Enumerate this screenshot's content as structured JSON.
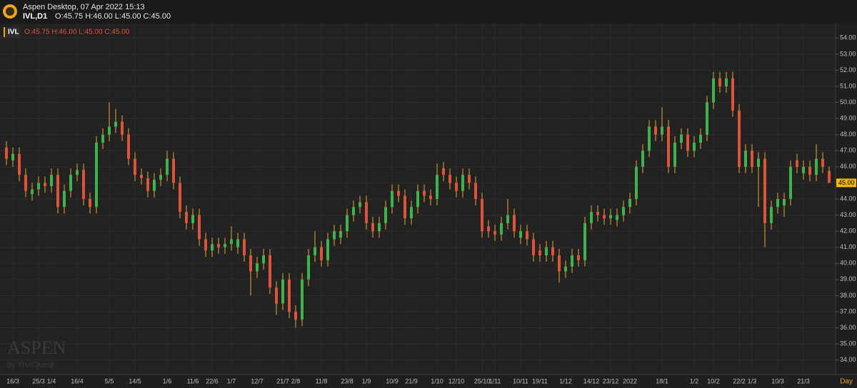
{
  "header": {
    "app": "Aspen Desktop, 07 Apr 2022 15:13",
    "symbol": "IVL,D1",
    "ohlc": "O:45.75 H:46.00 L:45.00 C:45.00"
  },
  "watermark": {
    "brand": "ASPEN",
    "by": "by ThaiQuest"
  },
  "chart_data": {
    "type": "candlestick",
    "categories": [
      null,
      "16/3",
      null,
      null,
      null,
      "25/3",
      null,
      "1/4",
      null,
      null,
      null,
      "16/4",
      null,
      null,
      null,
      null,
      "5/5",
      null,
      null,
      null,
      "14/5",
      null,
      null,
      null,
      null,
      "1/6",
      null,
      null,
      null,
      "11/6",
      null,
      null,
      "22/6",
      null,
      null,
      "1/7",
      null,
      null,
      null,
      "12/7",
      null,
      null,
      null,
      "21/7",
      null,
      "2/8",
      null,
      null,
      null,
      "11/8",
      null,
      null,
      null,
      "23/8",
      null,
      null,
      "1/9",
      null,
      null,
      null,
      "10/9",
      null,
      null,
      "21/9",
      null,
      null,
      null,
      "1/10",
      null,
      null,
      "12/10",
      null,
      null,
      null,
      "25/10",
      null,
      "1/11",
      null,
      null,
      null,
      "10/11",
      null,
      null,
      "19/11",
      null,
      null,
      null,
      "1/12",
      null,
      null,
      null,
      "14/12",
      null,
      null,
      "23/12",
      null,
      null,
      "2022",
      null,
      null,
      null,
      null,
      "18/1",
      null,
      null,
      null,
      null,
      "1/2",
      null,
      null,
      "10/2",
      null,
      null,
      null,
      "22/2",
      null,
      "1/3",
      null,
      null,
      null,
      "10/3",
      null,
      null,
      null,
      "21/3",
      null,
      null,
      null,
      null
    ],
    "x_axis_unit": "Day",
    "series": [
      {
        "name": "IVL",
        "legend_text": "O:45.75 H:46.00 L:45.00 C:45.00",
        "open": [
          47.2,
          46.4,
          46.8,
          45.5,
          44.3,
          44.6,
          45.0,
          44.8,
          45.5,
          43.5,
          44.5,
          45.5,
          45.8,
          44.0,
          43.5,
          47.5,
          48.0,
          48.5,
          48.8,
          48.0,
          46.5,
          45.5,
          45.3,
          44.5,
          45.2,
          45.5,
          46.5,
          45.0,
          43.2,
          42.5,
          43.0,
          41.5,
          40.8,
          41.2,
          41.0,
          41.2,
          41.0,
          41.5,
          40.5,
          39.5,
          40.0,
          40.5,
          38.5,
          37.5,
          39.0,
          37.0,
          36.5,
          39.0,
          40.5,
          41.0,
          40.2,
          41.5,
          41.6,
          42.0,
          43.0,
          43.5,
          43.8,
          42.5,
          42.0,
          42.5,
          43.5,
          44.5,
          44.2,
          42.8,
          43.5,
          44.5,
          44.2,
          44.0,
          45.9,
          45.5,
          45.0,
          44.5,
          45.5,
          45.0,
          44.0,
          42.3,
          42.0,
          41.8,
          42.5,
          43.0,
          41.6,
          42.0,
          41.5,
          40.8,
          40.5,
          41.0,
          40.5,
          39.5,
          39.8,
          40.5,
          40.2,
          42.5,
          43.2,
          43.0,
          42.8,
          42.7,
          43.0,
          43.5,
          44.0,
          46.0,
          47.0,
          48.5,
          48.0,
          48.5,
          46.0,
          47.5,
          48.0,
          47.0,
          47.5,
          48.0,
          50.0,
          51.5,
          51.0,
          51.5,
          49.5,
          46.0,
          47.0,
          46.0,
          46.5,
          42.5,
          43.5,
          43.6,
          44.0,
          46.4,
          45.6,
          46.0,
          45.5,
          46.5,
          45.75
        ],
        "high": [
          47.6,
          47.2,
          47.2,
          45.9,
          45.0,
          45.4,
          45.4,
          45.9,
          45.9,
          44.9,
          45.9,
          46.2,
          46.2,
          44.4,
          47.9,
          48.4,
          50.0,
          49.6,
          49.2,
          48.4,
          46.9,
          45.9,
          45.7,
          45.6,
          45.9,
          47.0,
          46.9,
          45.4,
          43.6,
          43.4,
          43.4,
          41.9,
          41.6,
          41.6,
          41.6,
          42.3,
          41.9,
          41.9,
          40.9,
          40.4,
          40.9,
          40.9,
          38.9,
          39.4,
          39.4,
          37.4,
          39.4,
          40.9,
          42.0,
          41.4,
          41.9,
          42.4,
          42.4,
          43.4,
          43.9,
          44.2,
          44.2,
          42.9,
          42.9,
          43.9,
          44.9,
          44.9,
          44.6,
          43.9,
          44.9,
          44.9,
          44.6,
          46.2,
          46.3,
          45.9,
          45.4,
          45.9,
          45.9,
          45.4,
          44.4,
          42.7,
          42.4,
          42.9,
          44.0,
          43.4,
          42.4,
          42.4,
          41.9,
          41.2,
          41.4,
          41.4,
          40.9,
          40.2,
          40.9,
          40.9,
          42.9,
          43.6,
          43.6,
          43.4,
          43.4,
          43.4,
          43.9,
          44.4,
          46.4,
          47.4,
          48.9,
          48.9,
          49.7,
          48.9,
          47.9,
          48.4,
          48.4,
          47.9,
          48.4,
          50.4,
          51.9,
          51.9,
          51.9,
          51.9,
          49.9,
          47.4,
          47.4,
          46.9,
          46.9,
          43.9,
          44.4,
          44.4,
          46.4,
          46.8,
          46.4,
          46.4,
          47.4,
          46.9,
          46.0
        ],
        "low": [
          46.1,
          46.0,
          45.1,
          44.1,
          43.9,
          44.2,
          44.4,
          44.4,
          43.1,
          43.1,
          44.1,
          45.1,
          43.6,
          43.1,
          43.1,
          47.1,
          47.6,
          48.1,
          47.6,
          46.1,
          45.1,
          44.9,
          44.1,
          44.1,
          44.8,
          45.1,
          44.6,
          42.8,
          42.1,
          42.1,
          41.1,
          40.4,
          40.4,
          40.6,
          40.6,
          40.8,
          40.6,
          40.1,
          38.0,
          39.1,
          39.6,
          38.1,
          36.8,
          37.1,
          36.6,
          36.0,
          36.1,
          38.6,
          40.1,
          39.8,
          39.8,
          41.1,
          41.2,
          41.6,
          42.6,
          43.1,
          42.1,
          41.6,
          41.6,
          42.1,
          43.1,
          43.8,
          42.4,
          42.4,
          43.1,
          43.8,
          43.6,
          43.6,
          45.1,
          44.6,
          44.1,
          44.1,
          44.6,
          43.6,
          41.6,
          41.6,
          41.4,
          41.4,
          42.1,
          41.6,
          41.2,
          41.1,
          40.1,
          40.1,
          40.1,
          40.1,
          38.8,
          39.1,
          39.4,
          39.8,
          39.8,
          42.1,
          42.6,
          42.4,
          42.4,
          42.3,
          42.6,
          43.1,
          43.6,
          45.6,
          46.6,
          47.6,
          47.6,
          45.6,
          45.6,
          47.1,
          46.6,
          46.6,
          47.1,
          47.6,
          49.6,
          50.6,
          50.6,
          49.1,
          45.6,
          45.6,
          45.6,
          43.5,
          41.0,
          42.1,
          43.1,
          42.9,
          43.6,
          45.6,
          45.2,
          45.1,
          45.1,
          45.6,
          45.0
        ],
        "close": [
          46.5,
          46.8,
          45.5,
          44.5,
          44.6,
          45.0,
          44.8,
          45.5,
          43.5,
          44.5,
          45.5,
          45.8,
          44.0,
          43.5,
          47.5,
          48.0,
          48.5,
          48.8,
          48.0,
          46.5,
          45.5,
          45.3,
          44.5,
          45.2,
          45.5,
          46.5,
          45.0,
          43.2,
          42.5,
          43.0,
          41.5,
          40.8,
          41.2,
          41.0,
          41.2,
          41.5,
          41.5,
          40.5,
          39.5,
          40.0,
          40.5,
          38.5,
          37.5,
          39.0,
          37.0,
          36.5,
          39.0,
          40.5,
          41.0,
          40.2,
          41.5,
          42.0,
          42.0,
          43.0,
          43.5,
          43.8,
          42.5,
          42.0,
          42.5,
          43.5,
          44.5,
          44.2,
          42.8,
          43.5,
          44.5,
          44.2,
          44.0,
          45.5,
          45.5,
          45.0,
          44.5,
          45.5,
          45.0,
          44.0,
          42.0,
          42.0,
          41.8,
          42.5,
          43.0,
          42.0,
          42.0,
          41.5,
          40.5,
          40.5,
          41.0,
          40.5,
          39.5,
          39.8,
          40.5,
          40.2,
          42.5,
          43.2,
          43.0,
          42.8,
          43.0,
          43.0,
          43.5,
          44.0,
          46.0,
          47.0,
          48.5,
          48.0,
          48.5,
          46.0,
          47.5,
          48.0,
          47.0,
          47.5,
          48.0,
          50.0,
          51.5,
          51.0,
          51.5,
          49.5,
          46.0,
          47.0,
          46.0,
          46.5,
          42.5,
          43.5,
          44.0,
          44.0,
          46.0,
          46.0,
          46.0,
          45.5,
          46.5,
          46.0,
          45.0
        ]
      }
    ],
    "up_color": "#3cb44b",
    "down_color": "#e0523a",
    "wick_color": "#e5a530",
    "last_price": {
      "value": 45,
      "label": "45.00"
    },
    "ylim": [
      33.1,
      54.9
    ],
    "yticks": [
      {
        "value": 34,
        "label": "34.00"
      },
      {
        "value": 35,
        "label": "35.00"
      },
      {
        "value": 36,
        "label": "36.00"
      },
      {
        "value": 37,
        "label": "37.00"
      },
      {
        "value": 38,
        "label": "38.00"
      },
      {
        "value": 39,
        "label": "39.00"
      },
      {
        "value": 40,
        "label": "40.00"
      },
      {
        "value": 41,
        "label": "41.00"
      },
      {
        "value": 42,
        "label": "42.00"
      },
      {
        "value": 43,
        "label": "43.00"
      },
      {
        "value": 44,
        "label": "44.00"
      },
      {
        "value": 45,
        "label": "45.00"
      },
      {
        "value": 46,
        "label": "46.00"
      },
      {
        "value": 47,
        "label": "47.00"
      },
      {
        "value": 48,
        "label": "48.00"
      },
      {
        "value": 49,
        "label": "49.00"
      },
      {
        "value": 50,
        "label": "50.00"
      },
      {
        "value": 51,
        "label": "51.00"
      },
      {
        "value": 52,
        "label": "52.00"
      },
      {
        "value": 53,
        "label": "53.00"
      },
      {
        "value": 54,
        "label": "54.00"
      }
    ],
    "grid": true
  }
}
